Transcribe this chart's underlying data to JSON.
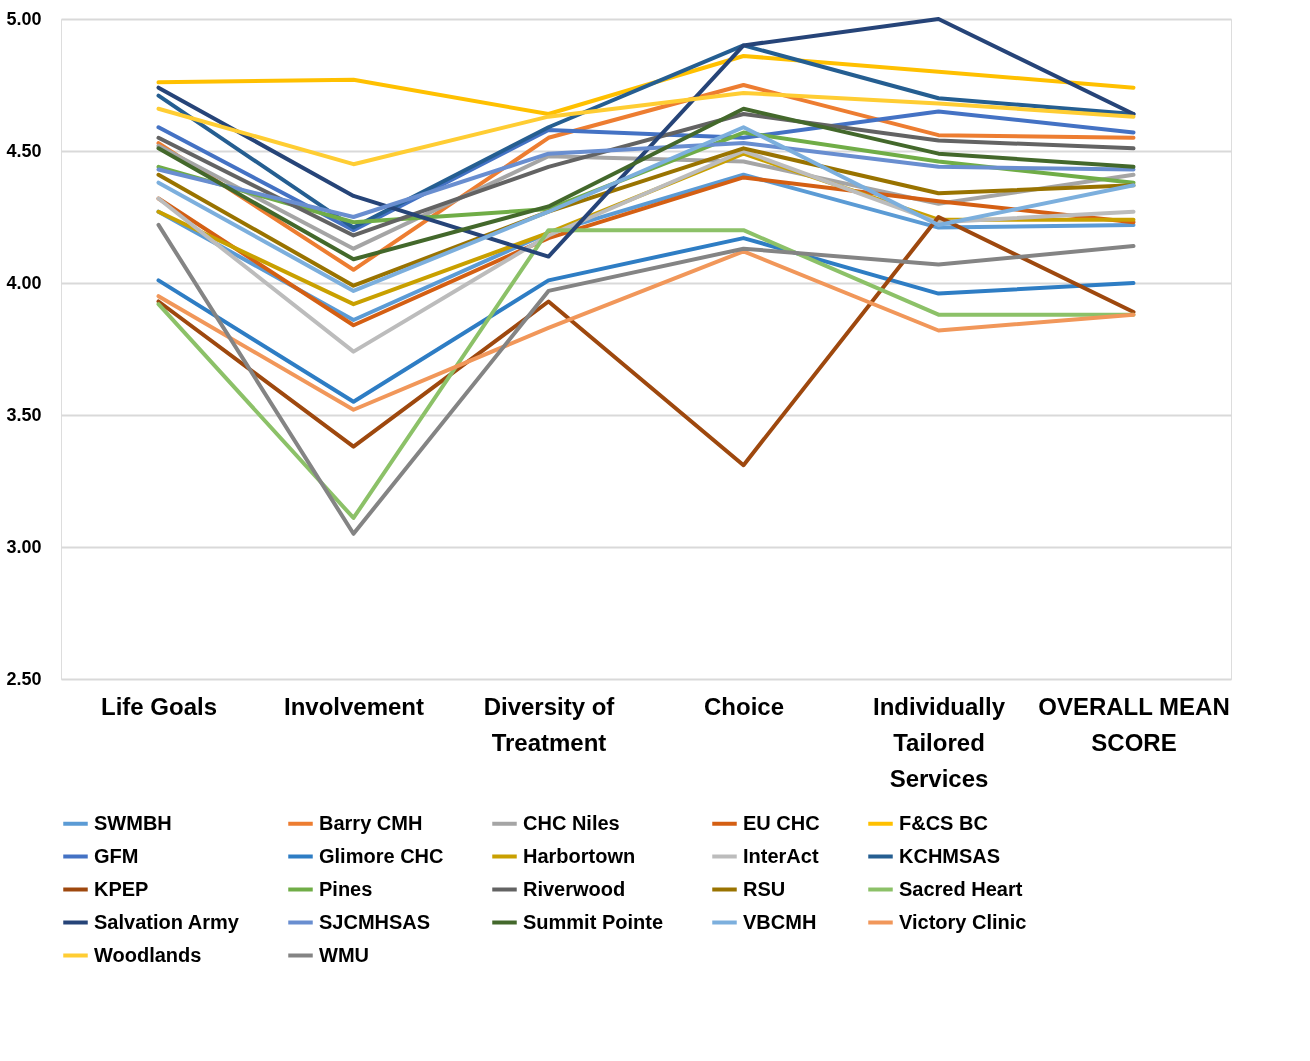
{
  "chart_data": {
    "type": "line",
    "categories": [
      "Life Goals",
      "Involvement",
      "Diversity of Treatment",
      "Choice",
      "Individually Tailored Services",
      "OVERALL MEAN SCORE"
    ],
    "ylim": [
      2.5,
      5.0
    ],
    "yticks": [
      {
        "value": 2.5,
        "label": "2.50"
      },
      {
        "value": 3.0,
        "label": "3.00"
      },
      {
        "value": 3.5,
        "label": "3.50"
      },
      {
        "value": 4.0,
        "label": "4.00"
      },
      {
        "value": 4.5,
        "label": "4.50"
      },
      {
        "value": 5.0,
        "label": "5.00"
      }
    ],
    "grid": "y",
    "legend": "bottom",
    "series": [
      {
        "name": "SWMBH",
        "color": "#5b9bd5",
        "values": [
          4.27,
          3.86,
          4.19,
          4.41,
          4.21,
          4.22
        ]
      },
      {
        "name": "Barry CMH",
        "color": "#ed7d31",
        "values": [
          4.53,
          4.05,
          4.55,
          4.75,
          4.56,
          4.55
        ]
      },
      {
        "name": "CHC Niles",
        "color": "#a5a5a5",
        "values": [
          4.52,
          4.13,
          4.48,
          4.46,
          4.3,
          4.41
        ]
      },
      {
        "name": "EU CHC",
        "color": "#d45f13",
        "values": [
          4.32,
          3.84,
          4.17,
          4.4,
          4.31,
          4.23
        ]
      },
      {
        "name": "F&CS BC",
        "color": "#ffc000",
        "values": [
          4.76,
          4.77,
          4.64,
          4.86,
          4.8,
          4.74
        ]
      },
      {
        "name": "GFM",
        "color": "#4472c4",
        "values": [
          4.59,
          4.2,
          4.58,
          4.55,
          4.65,
          4.57
        ]
      },
      {
        "name": "Glimore CHC",
        "color": "#2e7dc4",
        "values": [
          4.01,
          3.55,
          4.01,
          4.17,
          3.96,
          4.0
        ]
      },
      {
        "name": "Harbortown",
        "color": "#c9a000",
        "values": [
          4.27,
          3.92,
          4.19,
          4.49,
          4.24,
          4.24
        ]
      },
      {
        "name": "InterAct",
        "color": "#bcbcbc",
        "values": [
          4.32,
          3.74,
          4.18,
          4.5,
          4.23,
          4.27
        ]
      },
      {
        "name": "KCHMSAS",
        "color": "#255e91",
        "values": [
          4.71,
          4.21,
          4.59,
          4.9,
          4.7,
          4.64
        ]
      },
      {
        "name": "KPEP",
        "color": "#9e480e",
        "values": [
          3.93,
          3.38,
          3.93,
          3.31,
          4.25,
          3.89
        ]
      },
      {
        "name": "Pines",
        "color": "#70ad47",
        "values": [
          4.44,
          4.23,
          4.28,
          4.57,
          4.46,
          4.38
        ]
      },
      {
        "name": "Riverwood",
        "color": "#636363",
        "values": [
          4.55,
          4.18,
          4.44,
          4.64,
          4.54,
          4.51
        ]
      },
      {
        "name": "RSU",
        "color": "#997300",
        "values": [
          4.41,
          3.99,
          4.27,
          4.51,
          4.34,
          4.37
        ]
      },
      {
        "name": "Sacred Heart",
        "color": "#8cc168",
        "values": [
          3.92,
          3.11,
          4.2,
          4.2,
          3.88,
          3.88
        ]
      },
      {
        "name": "Salvation Army",
        "color": "#264478",
        "values": [
          4.74,
          4.33,
          4.1,
          4.9,
          5.0,
          4.64
        ]
      },
      {
        "name": "SJCMHSAS",
        "color": "#698ed0",
        "values": [
          4.43,
          4.25,
          4.49,
          4.53,
          4.44,
          4.43
        ]
      },
      {
        "name": "Summit Pointe",
        "color": "#43682b",
        "values": [
          4.51,
          4.09,
          4.29,
          4.66,
          4.49,
          4.44
        ]
      },
      {
        "name": "VBCMH",
        "color": "#7cafdd",
        "values": [
          4.38,
          3.97,
          4.27,
          4.59,
          4.22,
          4.37
        ]
      },
      {
        "name": "Victory Clinic",
        "color": "#f1975a",
        "values": [
          3.95,
          3.52,
          3.83,
          4.12,
          3.82,
          3.88
        ]
      },
      {
        "name": "Woodlands",
        "color": "#ffcd33",
        "values": [
          4.66,
          4.45,
          4.63,
          4.72,
          4.68,
          4.63
        ]
      },
      {
        "name": "WMU",
        "color": "#848484",
        "values": [
          4.22,
          3.05,
          3.97,
          4.13,
          4.07,
          4.14
        ]
      }
    ]
  }
}
